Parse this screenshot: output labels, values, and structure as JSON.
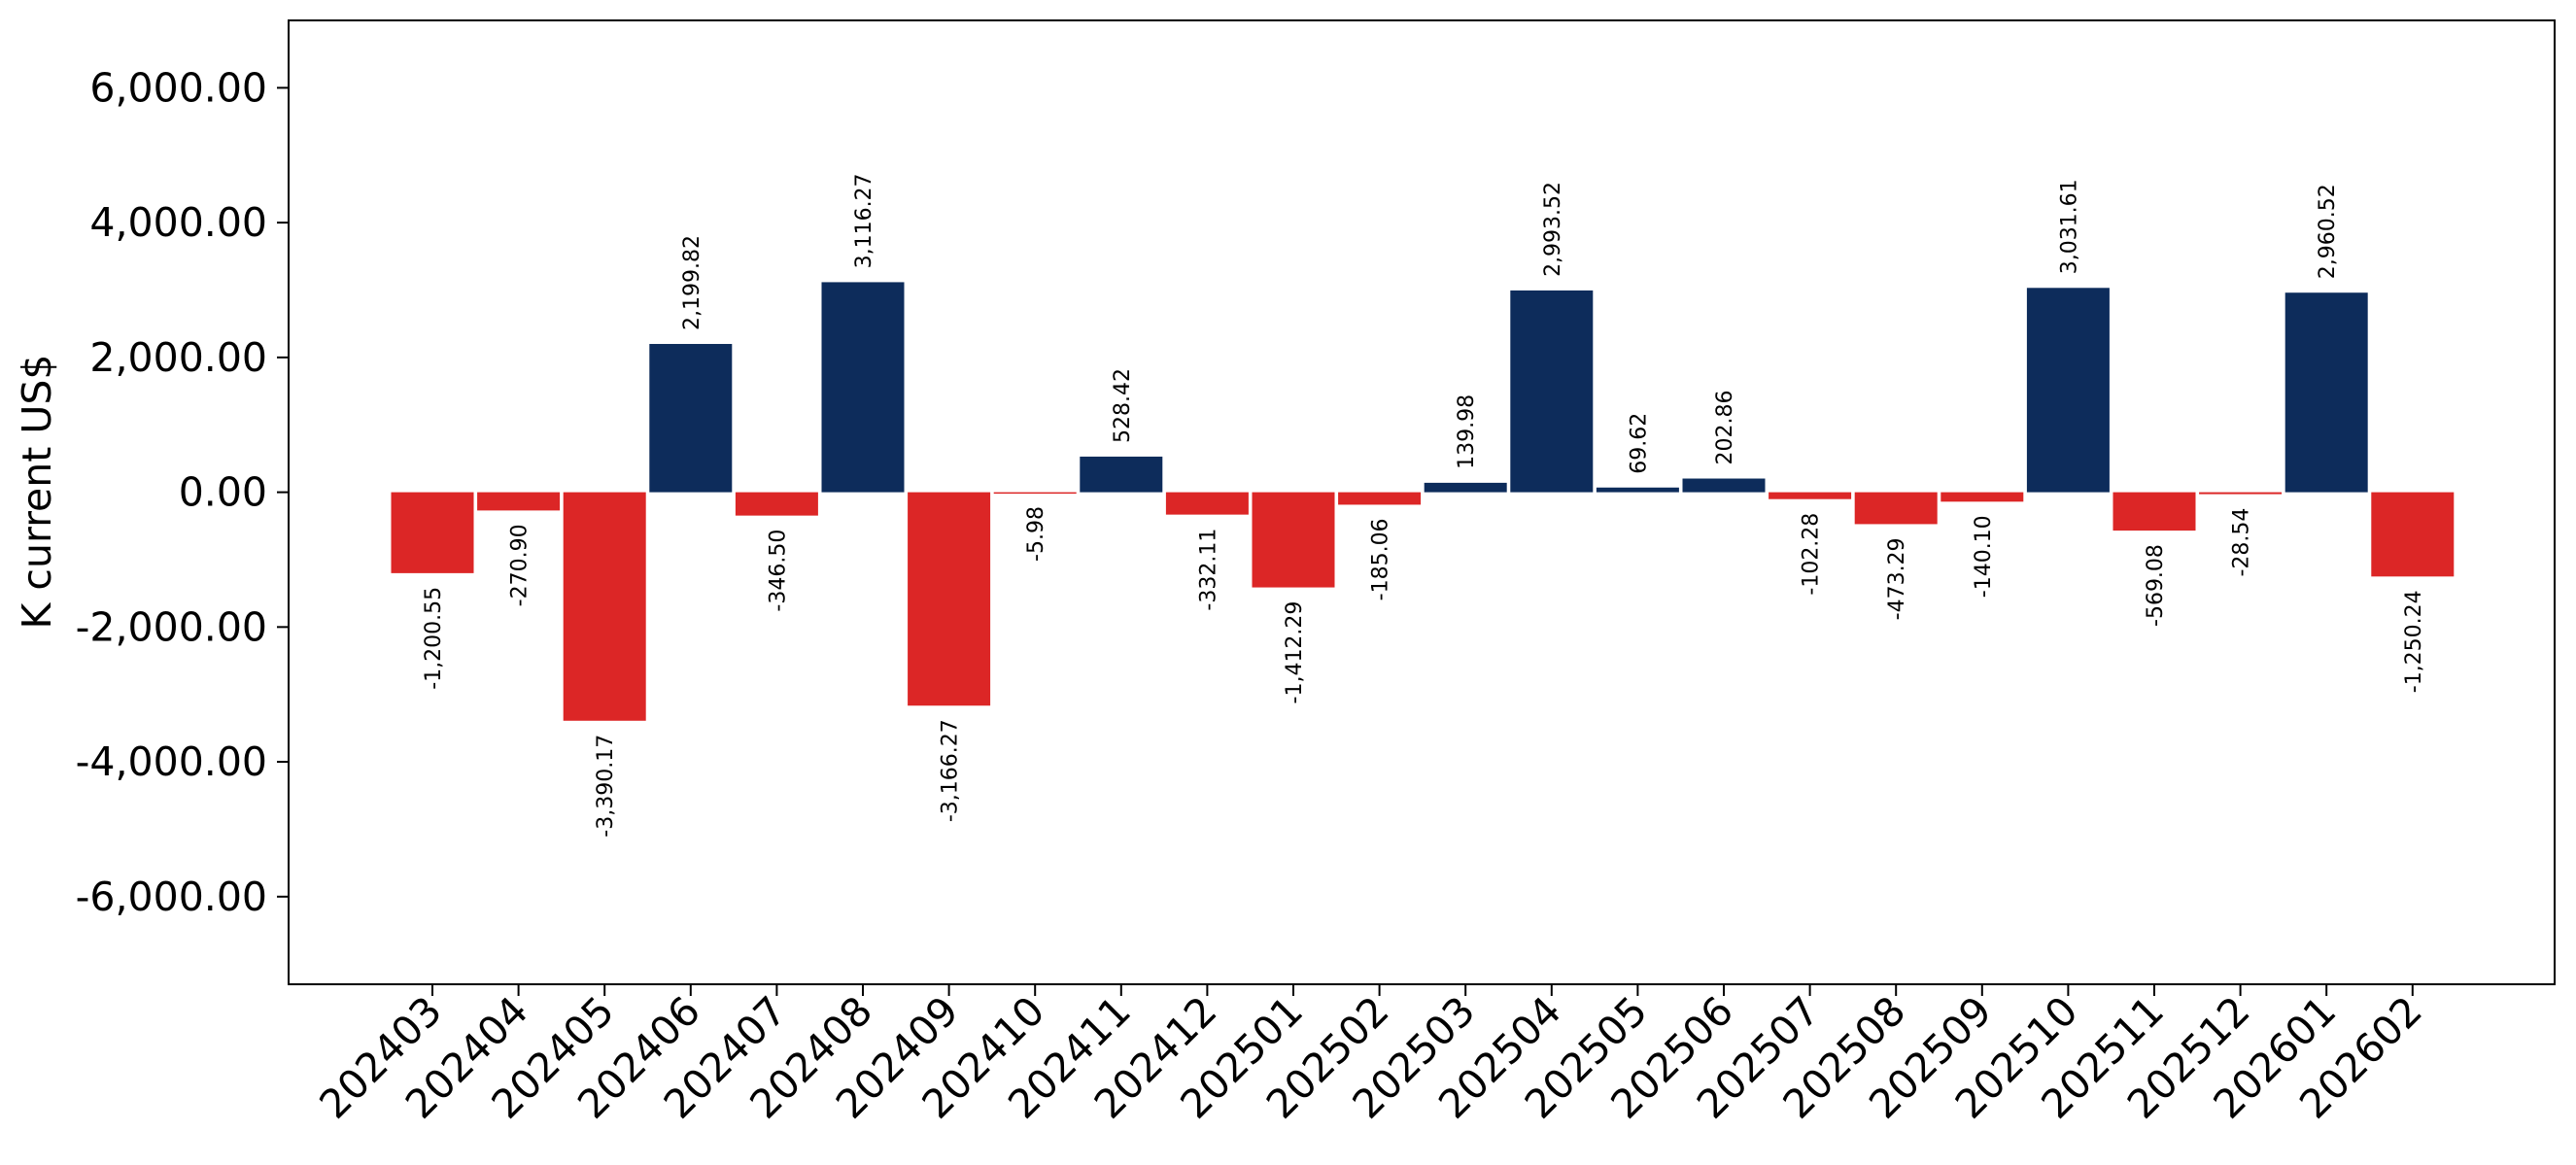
{
  "chart_data": {
    "type": "bar",
    "title": "",
    "xlabel": "",
    "ylabel": "K current US$",
    "ylim": [
      -7300,
      7000
    ],
    "yticks": [
      -6000,
      -4000,
      -2000,
      0,
      2000,
      4000,
      6000
    ],
    "ytick_labels": [
      "-6,000.00",
      "-4,000.00",
      "-2,000.00",
      "0.00",
      "2,000.00",
      "4,000.00",
      "6,000.00"
    ],
    "grid": false,
    "legend": "none",
    "colors": {
      "positive": "#0d2c5b",
      "negative": "#dc2626"
    },
    "categories": [
      "202403",
      "202404",
      "202405",
      "202406",
      "202407",
      "202408",
      "202409",
      "202410",
      "202411",
      "202412",
      "202501",
      "202502",
      "202503",
      "202504",
      "202505",
      "202506",
      "202507",
      "202508",
      "202509",
      "202510",
      "202511",
      "202512",
      "202601",
      "202602"
    ],
    "values": [
      -1200.55,
      -270.9,
      -3390.17,
      2199.82,
      -346.5,
      3116.27,
      -3166.27,
      -5.98,
      528.42,
      -332.11,
      -1412.29,
      -185.06,
      139.98,
      2993.52,
      69.62,
      202.86,
      -102.28,
      -473.29,
      -140.1,
      3031.61,
      -569.08,
      -28.54,
      2960.52,
      -1250.24
    ],
    "value_labels": [
      "-1,200.55",
      "-270.90",
      "-3,390.17",
      "2,199.82",
      "-346.50",
      "3,116.27",
      "-3,166.27",
      "-5.98",
      "528.42",
      "-332.11",
      "-1,412.29",
      "-185.06",
      "139.98",
      "2,993.52",
      "69.62",
      "202.86",
      "-102.28",
      "-473.29",
      "-140.10",
      "3,031.61",
      "-569.08",
      "-28.54",
      "2,960.52",
      "-1,250.24"
    ]
  }
}
